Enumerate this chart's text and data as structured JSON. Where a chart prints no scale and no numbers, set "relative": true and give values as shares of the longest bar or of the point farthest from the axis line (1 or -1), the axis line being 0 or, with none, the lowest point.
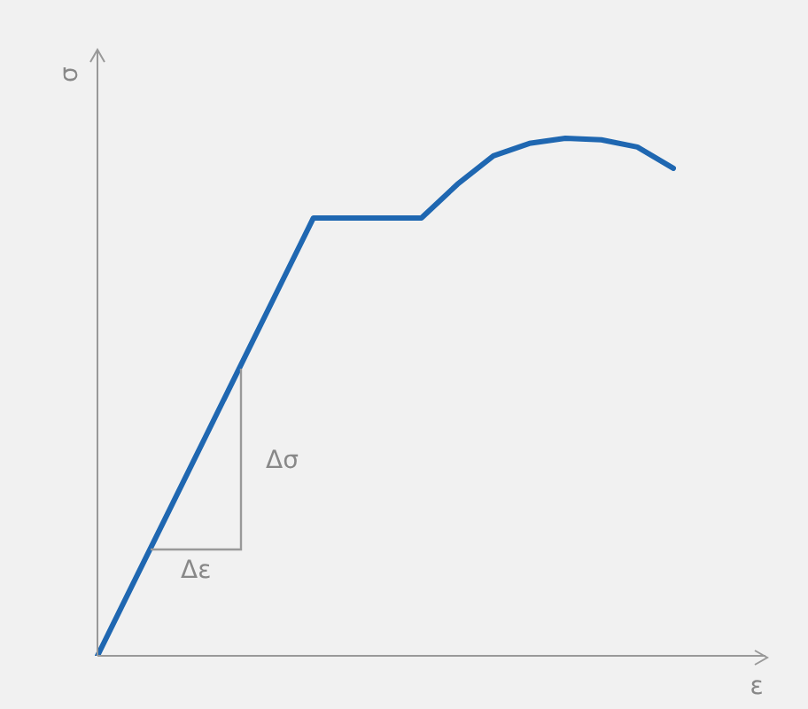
{
  "chart_data": {
    "type": "line",
    "relative": true,
    "xlabel": "ε",
    "ylabel": "σ",
    "categories": [
      null,
      null,
      null,
      null,
      null,
      null,
      null,
      null,
      null,
      null,
      null,
      null,
      null,
      null,
      null,
      null,
      null
    ],
    "series": [
      {
        "color": "#1f67b1",
        "values": [
          0,
          0.141,
          0.282,
          0.423,
          0.564,
          0.705,
          0.846,
          0.846,
          0.846,
          0.846,
          0.911,
          0.966,
          0.99,
          1.0,
          0.997,
          0.983,
          0.942
        ]
      }
    ],
    "annotations": [
      "Δσ",
      "Δε"
    ],
    "legend": false,
    "marker": "none",
    "line_style": "solid"
  }
}
